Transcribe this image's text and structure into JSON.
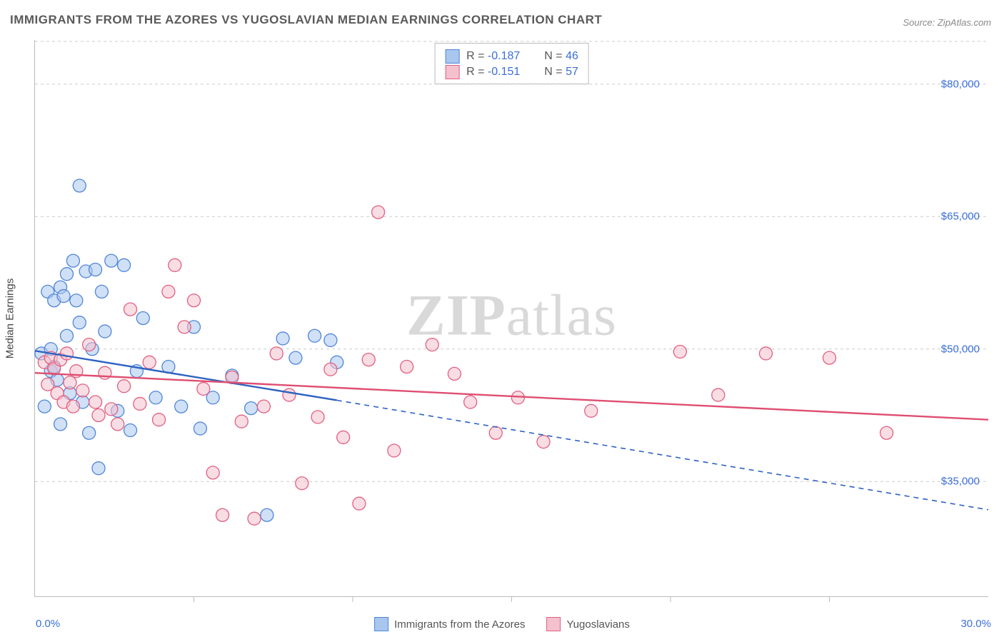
{
  "title": "IMMIGRANTS FROM THE AZORES VS YUGOSLAVIAN MEDIAN EARNINGS CORRELATION CHART",
  "source_label": "Source: ZipAtlas.com",
  "watermark": {
    "bold": "ZIP",
    "rest": "atlas"
  },
  "chart": {
    "type": "scatter",
    "background_color": "#ffffff",
    "grid_color": "#cccccc",
    "axis_color": "#bbbbbb",
    "ylabel": "Median Earnings",
    "label_fontsize": 15,
    "tick_fontsize": 15,
    "tick_color": "#3b6fd6",
    "xlim": [
      0.0,
      30.0
    ],
    "ylim": [
      22000,
      85000
    ],
    "x_ticks": [
      0.0,
      30.0
    ],
    "x_tick_labels": [
      "0.0%",
      "30.0%"
    ],
    "x_minor_ticks": [
      5,
      10,
      15,
      20,
      25
    ],
    "y_ticks": [
      35000,
      50000,
      65000,
      80000
    ],
    "y_tick_labels": [
      "$35,000",
      "$50,000",
      "$65,000",
      "$80,000"
    ],
    "point_radius": 9,
    "point_opacity": 0.55,
    "line_width": 2.4,
    "series": [
      {
        "name": "Immigrants from the Azores",
        "color_fill": "#a9c6ee",
        "color_stroke": "#4f86d9",
        "line_color": "#2d62c0",
        "R": "-0.187",
        "N": "46",
        "trend_solid": {
          "x1": 0.0,
          "y1": 49800,
          "x2": 9.5,
          "y2": 44200
        },
        "trend_dash": {
          "x1": 9.5,
          "y1": 44200,
          "x2": 30.0,
          "y2": 31800
        },
        "points": [
          [
            0.2,
            49500
          ],
          [
            0.3,
            43500
          ],
          [
            0.4,
            56500
          ],
          [
            0.5,
            50000
          ],
          [
            0.5,
            47500
          ],
          [
            0.6,
            55500
          ],
          [
            0.6,
            48000
          ],
          [
            0.7,
            46500
          ],
          [
            0.8,
            57000
          ],
          [
            0.8,
            41500
          ],
          [
            1.0,
            58500
          ],
          [
            1.0,
            51500
          ],
          [
            1.1,
            45000
          ],
          [
            1.2,
            60000
          ],
          [
            1.3,
            55500
          ],
          [
            1.4,
            53000
          ],
          [
            1.4,
            68500
          ],
          [
            1.5,
            44000
          ],
          [
            1.6,
            58800
          ],
          [
            1.7,
            40500
          ],
          [
            1.8,
            50000
          ],
          [
            1.9,
            59000
          ],
          [
            2.0,
            36500
          ],
          [
            2.1,
            56500
          ],
          [
            2.2,
            52000
          ],
          [
            2.4,
            60000
          ],
          [
            2.6,
            43000
          ],
          [
            2.8,
            59500
          ],
          [
            3.0,
            40800
          ],
          [
            3.2,
            47500
          ],
          [
            3.4,
            53500
          ],
          [
            3.8,
            44500
          ],
          [
            4.2,
            48000
          ],
          [
            4.6,
            43500
          ],
          [
            5.0,
            52500
          ],
          [
            5.2,
            41000
          ],
          [
            5.6,
            44500
          ],
          [
            6.2,
            47000
          ],
          [
            6.8,
            43300
          ],
          [
            7.3,
            31200
          ],
          [
            7.8,
            51200
          ],
          [
            8.2,
            49000
          ],
          [
            8.8,
            51500
          ],
          [
            9.3,
            51000
          ],
          [
            9.5,
            48500
          ],
          [
            0.9,
            56000
          ]
        ]
      },
      {
        "name": "Yugoslavians",
        "color_fill": "#f4c1ce",
        "color_stroke": "#e2607f",
        "line_color": "#df4e71",
        "R": "-0.151",
        "N": "57",
        "trend_solid": {
          "x1": 0.0,
          "y1": 47300,
          "x2": 30.0,
          "y2": 42000
        },
        "trend_dash": null,
        "points": [
          [
            0.3,
            48500
          ],
          [
            0.4,
            46000
          ],
          [
            0.5,
            49000
          ],
          [
            0.6,
            47800
          ],
          [
            0.7,
            45000
          ],
          [
            0.8,
            48800
          ],
          [
            0.9,
            44000
          ],
          [
            1.0,
            49500
          ],
          [
            1.1,
            46200
          ],
          [
            1.2,
            43500
          ],
          [
            1.3,
            47500
          ],
          [
            1.5,
            45300
          ],
          [
            1.7,
            50500
          ],
          [
            1.9,
            44000
          ],
          [
            2.0,
            42500
          ],
          [
            2.2,
            47300
          ],
          [
            2.4,
            43200
          ],
          [
            2.6,
            41500
          ],
          [
            2.8,
            45800
          ],
          [
            3.0,
            54500
          ],
          [
            3.3,
            43800
          ],
          [
            3.6,
            48500
          ],
          [
            3.9,
            42000
          ],
          [
            4.2,
            56500
          ],
          [
            4.4,
            59500
          ],
          [
            4.7,
            52500
          ],
          [
            5.0,
            55500
          ],
          [
            5.3,
            45500
          ],
          [
            5.6,
            36000
          ],
          [
            5.9,
            31200
          ],
          [
            6.2,
            46800
          ],
          [
            6.5,
            41800
          ],
          [
            6.9,
            30800
          ],
          [
            7.2,
            43500
          ],
          [
            7.6,
            49500
          ],
          [
            8.0,
            44800
          ],
          [
            8.4,
            34800
          ],
          [
            8.9,
            42300
          ],
          [
            9.3,
            47700
          ],
          [
            9.7,
            40000
          ],
          [
            10.2,
            32500
          ],
          [
            10.5,
            48800
          ],
          [
            10.8,
            65500
          ],
          [
            11.3,
            38500
          ],
          [
            11.7,
            48000
          ],
          [
            12.5,
            50500
          ],
          [
            13.2,
            47200
          ],
          [
            13.7,
            44000
          ],
          [
            14.5,
            40500
          ],
          [
            15.2,
            44500
          ],
          [
            16.0,
            39500
          ],
          [
            17.5,
            43000
          ],
          [
            20.3,
            49700
          ],
          [
            21.5,
            44800
          ],
          [
            23.0,
            49500
          ],
          [
            25.0,
            49000
          ],
          [
            26.8,
            40500
          ]
        ]
      }
    ],
    "bottom_legend": [
      {
        "label": "Immigrants from the Azores",
        "fill": "#a9c6ee",
        "stroke": "#4f86d9"
      },
      {
        "label": "Yugoslavians",
        "fill": "#f4c1ce",
        "stroke": "#e2607f"
      }
    ]
  }
}
